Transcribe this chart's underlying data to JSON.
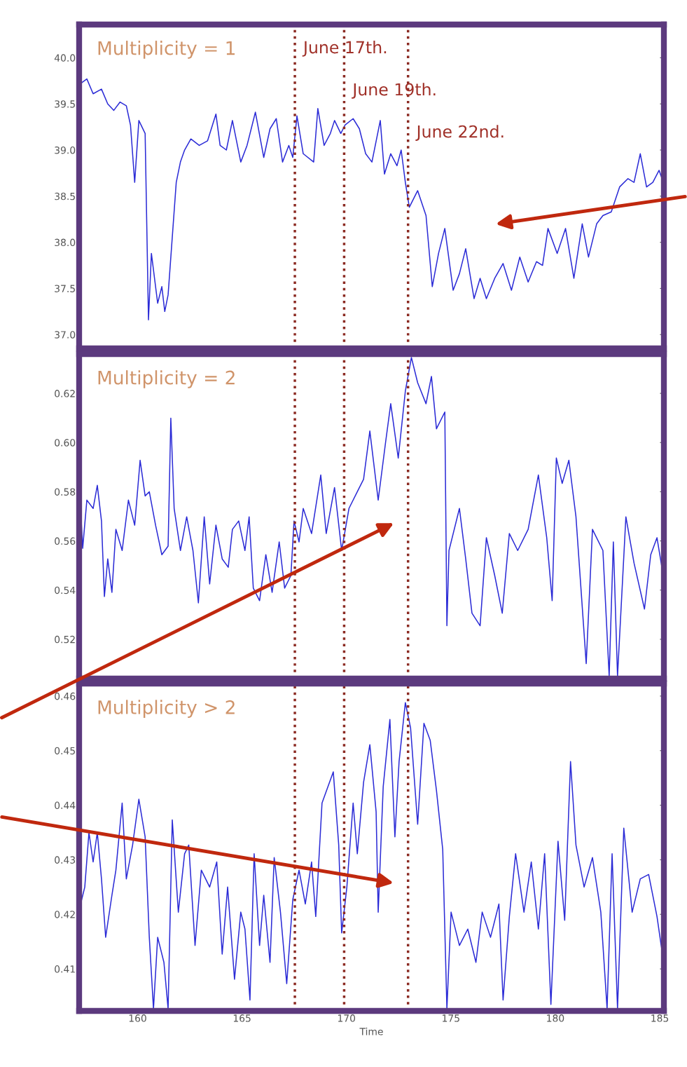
{
  "chart_data": [
    {
      "type": "line",
      "annotations": [
        "Multiplicity = 1"
      ],
      "tick_labels": "y",
      "grid": false,
      "marker": "none",
      "line_style": "solid",
      "x": [
        157.27,
        157.57,
        157.87,
        158.27,
        158.57,
        158.86,
        159.16,
        159.46,
        159.66,
        159.86,
        160.06,
        160.36,
        160.52,
        160.66,
        160.8,
        160.96,
        161.16,
        161.3,
        161.46,
        161.56,
        161.71,
        161.85,
        162.05,
        162.25,
        162.55,
        162.95,
        163.35,
        163.75,
        163.95,
        164.25,
        164.54,
        164.94,
        165.24,
        165.64,
        166.04,
        166.34,
        166.64,
        166.94,
        167.24,
        167.43,
        167.63,
        167.93,
        168.43,
        168.63,
        168.93,
        169.23,
        169.43,
        169.73,
        169.93,
        170.32,
        170.62,
        170.92,
        171.22,
        171.62,
        171.82,
        172.12,
        172.42,
        172.62,
        172.82,
        173.01,
        173.41,
        173.81,
        174.11,
        174.41,
        174.71,
        174.91,
        175.11,
        175.41,
        175.71,
        176.11,
        176.4,
        176.7,
        177.1,
        177.5,
        177.9,
        178.3,
        178.7,
        179.1,
        179.39,
        179.65,
        179.85,
        180.09,
        180.49,
        180.89,
        181.29,
        181.59,
        181.98,
        182.28,
        182.48,
        182.68,
        182.88,
        183.08,
        183.48,
        183.77,
        184.07,
        184.37,
        184.67,
        184.97,
        185.11
      ],
      "series": [
        {
          "color": "#2b2bd6",
          "values": [
            39.72,
            39.77,
            39.61,
            39.66,
            39.5,
            39.43,
            39.52,
            39.48,
            39.27,
            38.65,
            39.32,
            39.18,
            37.16,
            37.88,
            null,
            37.34,
            37.52,
            37.25,
            37.43,
            null,
            null,
            38.65,
            38.87,
            39.0,
            39.12,
            39.05,
            39.1,
            39.39,
            39.05,
            39.0,
            39.32,
            38.87,
            39.05,
            39.41,
            38.92,
            39.23,
            39.34,
            38.87,
            39.05,
            38.92,
            39.37,
            38.96,
            38.87,
            39.45,
            39.05,
            39.18,
            39.32,
            39.18,
            39.27,
            39.34,
            39.23,
            38.96,
            38.87,
            39.32,
            38.74,
            38.96,
            38.83,
            39.0,
            38.65,
            38.38,
            38.56,
            38.29,
            37.52,
            37.88,
            38.15,
            null,
            37.48,
            37.66,
            37.93,
            37.39,
            37.61,
            37.39,
            37.61,
            37.77,
            37.48,
            37.84,
            37.57,
            37.79,
            37.75,
            38.15,
            null,
            37.88,
            38.15,
            37.61,
            38.2,
            37.84,
            38.2,
            38.29,
            null,
            38.33,
            null,
            38.6,
            38.69,
            38.65,
            38.96,
            38.6,
            38.65,
            38.78,
            38.69
          ]
        }
      ],
      "xlim": [
        157.2,
        185.2
      ],
      "xticks": [
        160,
        165,
        170,
        175,
        180,
        185
      ],
      "ylim": [
        36.85,
        40.36
      ],
      "yticks": [
        {
          "value": 37,
          "label": "37.0"
        },
        37.5,
        {
          "value": 38,
          "label": "38.0"
        },
        38.5,
        {
          "value": 39,
          "label": "39.0"
        },
        39.5,
        {
          "value": 40,
          "label": "40.0"
        }
      ],
      "ref_lines": [
        {
          "axis": "x",
          "value": 167.53,
          "label": "June 17th.",
          "color": "#8b2a22",
          "line_style": "dotted"
        },
        {
          "axis": "x",
          "value": 169.89,
          "label": "June 19th.",
          "color": "#8b2a22",
          "line_style": "dotted"
        },
        {
          "axis": "x",
          "value": 172.95,
          "label": "June 22nd.",
          "color": "#8b2a22",
          "line_style": "dotted"
        }
      ]
    },
    {
      "type": "line",
      "annotations": [
        "Multiplicity = 2"
      ],
      "tick_labels": "y",
      "grid": false,
      "marker": "none",
      "line_style": "solid",
      "x": [
        157.27,
        157.37,
        157.57,
        157.87,
        158.07,
        158.27,
        158.41,
        158.57,
        158.77,
        158.96,
        159.26,
        159.56,
        159.86,
        160.12,
        160.36,
        160.56,
        160.86,
        161.16,
        161.46,
        161.59,
        161.75,
        162.05,
        162.35,
        162.65,
        162.91,
        163.19,
        163.45,
        163.75,
        164.05,
        164.34,
        164.54,
        164.84,
        165.14,
        165.34,
        165.54,
        165.84,
        166.14,
        166.44,
        166.78,
        167.04,
        167.34,
        167.49,
        167.73,
        167.93,
        168.33,
        168.77,
        169.03,
        169.43,
        169.77,
        170.12,
        170.52,
        170.82,
        171.12,
        171.52,
        171.88,
        172.12,
        172.48,
        172.82,
        173.11,
        173.41,
        173.81,
        174.07,
        174.31,
        174.71,
        174.81,
        174.91,
        175.41,
        175.71,
        176.01,
        176.4,
        176.7,
        177.1,
        177.46,
        177.8,
        178.2,
        178.7,
        179.19,
        179.59,
        179.85,
        180.05,
        180.33,
        180.65,
        180.99,
        181.48,
        181.78,
        182.28,
        182.58,
        182.78,
        182.98,
        183.38,
        183.77,
        184.27,
        184.57,
        184.87,
        185.17
      ],
      "series": [
        {
          "color": "#2b2bd6",
          "values": [
            0.5732,
            0.557,
            0.5766,
            0.5732,
            0.5826,
            0.5681,
            0.5374,
            0.5527,
            0.5391,
            0.5647,
            0.5561,
            0.5766,
            0.5664,
            0.5928,
            0.5783,
            0.58,
            0.5664,
            0.5544,
            0.5579,
            0.6099,
            0.5732,
            0.5561,
            0.5698,
            0.5561,
            0.5348,
            0.5698,
            0.5425,
            0.5664,
            0.5527,
            0.5493,
            0.5647,
            0.5681,
            0.5561,
            0.5698,
            0.5408,
            0.5357,
            0.5544,
            0.5391,
            0.5596,
            0.5408,
            0.5459,
            0.5681,
            0.5596,
            0.5732,
            0.563,
            0.5868,
            0.563,
            0.5817,
            0.5561,
            0.5732,
            0.58,
            0.5851,
            0.6047,
            0.5766,
            0.6005,
            0.6158,
            0.5937,
            0.6209,
            0.6346,
            0.6243,
            0.6158,
            0.6269,
            0.6056,
            0.6124,
            0.5255,
            0.5561,
            0.5732,
            0.5527,
            0.5306,
            0.5255,
            0.5613,
            0.5459,
            0.5306,
            0.563,
            0.5561,
            0.5647,
            0.5868,
            0.5613,
            0.5357,
            0.5937,
            0.5834,
            0.5928,
            0.5698,
            0.5101,
            0.5647,
            0.5561,
            0.505,
            0.5596,
            0.505,
            0.5698,
            0.551,
            0.5323,
            0.5544,
            0.5613,
            0.5459
          ]
        }
      ],
      "xlim": [
        157.2,
        185.2
      ],
      "xticks": [
        160,
        165,
        170,
        175,
        180,
        185
      ],
      "ylim": [
        0.504,
        0.636
      ],
      "yticks": [
        0.52,
        0.54,
        0.56,
        0.58,
        {
          "value": 0.6,
          "label": "0.60"
        },
        0.62
      ],
      "ref_lines": [
        {
          "axis": "x",
          "value": 167.53,
          "color": "#8b2a22",
          "line_style": "dotted"
        },
        {
          "axis": "x",
          "value": 169.89,
          "color": "#8b2a22",
          "line_style": "dotted"
        },
        {
          "axis": "x",
          "value": 172.95,
          "color": "#8b2a22",
          "line_style": "dotted"
        }
      ]
    },
    {
      "type": "line",
      "annotations": [
        "Multiplicity > 2"
      ],
      "xlabel": "Time",
      "grid": false,
      "marker": "none",
      "line_style": "solid",
      "x": [
        157.27,
        157.47,
        157.67,
        157.87,
        158.07,
        158.27,
        158.47,
        158.77,
        158.96,
        159.26,
        159.46,
        159.76,
        160.06,
        160.36,
        160.56,
        160.76,
        160.96,
        161.26,
        161.46,
        161.66,
        161.95,
        162.25,
        162.45,
        162.75,
        163.05,
        163.45,
        163.79,
        164.05,
        164.31,
        164.64,
        164.94,
        165.14,
        165.38,
        165.58,
        165.84,
        166.04,
        166.34,
        166.54,
        166.84,
        167.14,
        167.43,
        167.73,
        168.03,
        168.33,
        168.53,
        168.83,
        169.37,
        169.63,
        169.77,
        170.02,
        170.32,
        170.52,
        170.82,
        171.12,
        171.42,
        171.52,
        171.76,
        172.08,
        172.32,
        172.52,
        172.82,
        173.07,
        173.41,
        173.71,
        174.01,
        174.31,
        174.61,
        174.81,
        175.01,
        175.41,
        175.81,
        176.2,
        176.5,
        176.9,
        177.3,
        177.5,
        177.8,
        178.1,
        178.5,
        178.85,
        179.19,
        179.49,
        179.79,
        180.13,
        180.45,
        180.73,
        180.99,
        181.38,
        181.78,
        182.18,
        182.48,
        182.72,
        182.98,
        183.28,
        183.68,
        184.07,
        184.47,
        184.87,
        185.07,
        185.17
      ],
      "series": [
        {
          "color": "#2b2bd6",
          "values": [
            0.4219,
            0.425,
            0.435,
            0.4296,
            0.435,
            0.4265,
            0.4158,
            0.4235,
            0.4281,
            0.4404,
            0.4265,
            0.4327,
            0.4411,
            0.4342,
            0.4158,
            0.4027,
            0.4158,
            0.4112,
            0.4027,
            0.4373,
            0.4204,
            0.4311,
            0.4327,
            0.4143,
            0.4281,
            0.425,
            0.4296,
            0.4127,
            0.425,
            0.4081,
            0.4204,
            0.4173,
            0.4043,
            0.4311,
            0.4143,
            0.4235,
            0.4112,
            0.4304,
            0.4204,
            0.4073,
            0.4227,
            0.4281,
            0.4219,
            0.4296,
            0.4196,
            0.4404,
            0.4461,
            0.4327,
            0.4166,
            0.425,
            0.4404,
            0.4311,
            0.4442,
            0.4511,
            0.4388,
            0.4204,
            0.4434,
            0.4557,
            0.4342,
            0.448,
            0.4588,
            0.4542,
            0.4365,
            0.455,
            0.4519,
            0.4427,
            0.4319,
            0.4027,
            0.4204,
            0.4143,
            0.4173,
            0.4112,
            0.4204,
            0.4158,
            0.4219,
            0.4043,
            0.4196,
            0.4311,
            0.4204,
            0.4296,
            0.4173,
            0.4311,
            0.4035,
            0.4334,
            0.4189,
            0.448,
            0.4327,
            0.425,
            0.4304,
            0.4204,
            0.4027,
            0.4311,
            0.4027,
            0.4358,
            0.4204,
            0.4265,
            0.4273,
            0.4196,
            0.4143,
            0.412
          ]
        }
      ],
      "xlim": [
        157.2,
        185.2
      ],
      "xticks": [
        160,
        165,
        170,
        175,
        180,
        185
      ],
      "ylim": [
        0.4023,
        0.4623
      ],
      "yticks": [
        0.41,
        0.42,
        0.43,
        0.44,
        0.45,
        0.46
      ],
      "ref_lines": [
        {
          "axis": "x",
          "value": 167.53,
          "color": "#8b2a22",
          "line_style": "dotted"
        },
        {
          "axis": "x",
          "value": 169.89,
          "color": "#8b2a22",
          "line_style": "dotted"
        },
        {
          "axis": "x",
          "value": 172.95,
          "color": "#8b2a22",
          "line_style": "dotted"
        }
      ]
    }
  ]
}
